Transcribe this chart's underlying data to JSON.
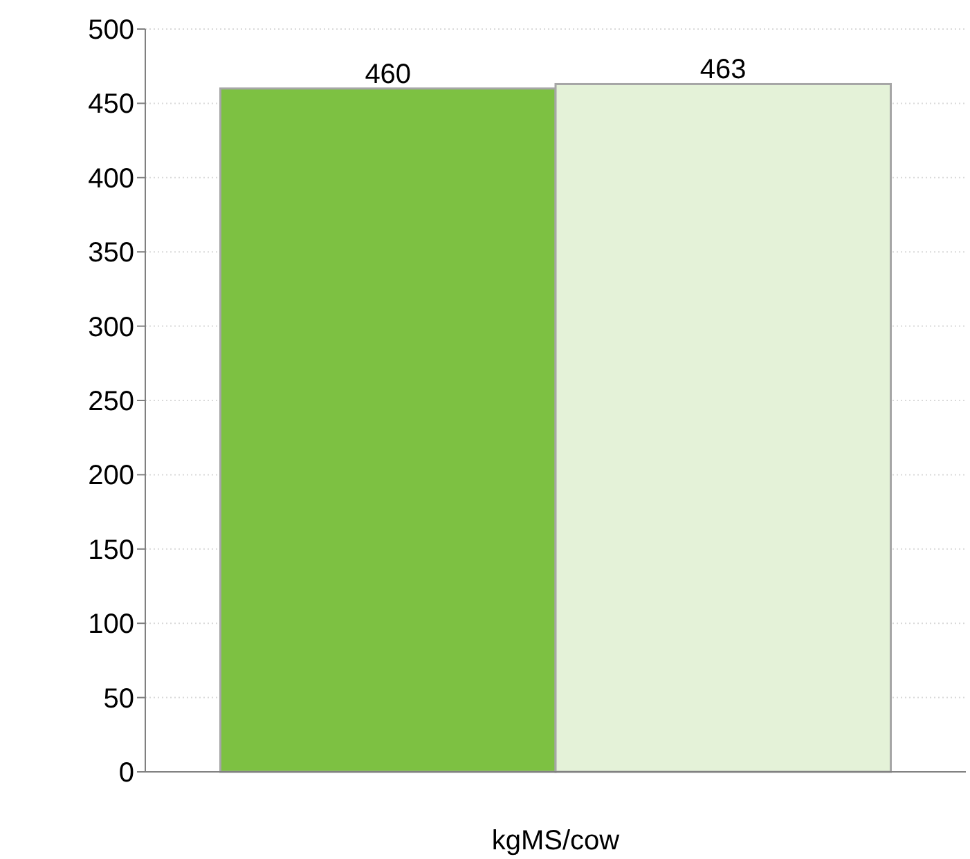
{
  "chart_data": {
    "type": "bar",
    "categories": [
      "kgMS/cow"
    ],
    "series": [
      {
        "color": "#7dc142",
        "values": [
          460
        ]
      },
      {
        "color": "#e4f2d8",
        "values": [
          463
        ]
      }
    ],
    "ylim": [
      0,
      500
    ],
    "yticks": [
      0,
      50,
      100,
      150,
      200,
      250,
      300,
      350,
      400,
      450,
      500
    ],
    "grid": "y",
    "data_labels": true
  }
}
